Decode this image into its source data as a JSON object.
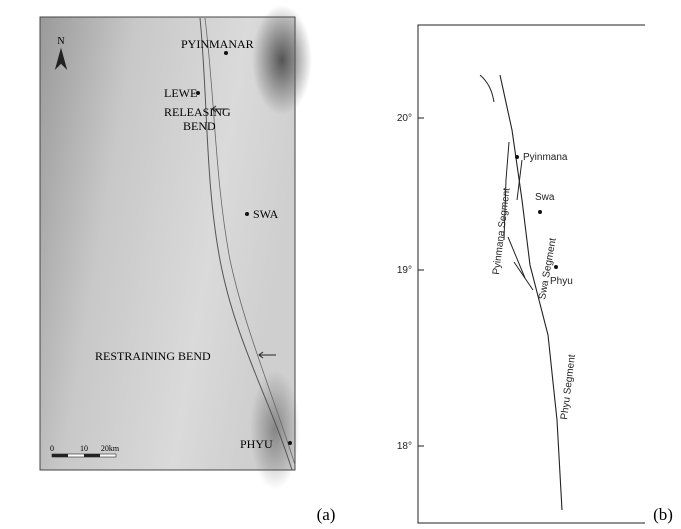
{
  "panel_a": {
    "north": "N",
    "places": [
      "PYINMANAR",
      "LEWE",
      "SWA",
      "PHYU"
    ],
    "releasing_bend": [
      "RELEASING",
      "BEND"
    ],
    "restraining_bend": "RESTRAINING BEND",
    "scale_bar": [
      "0",
      "10",
      "20km"
    ],
    "label": "(a)"
  },
  "panel_b": {
    "latitudes": [
      "20°",
      "19°",
      "18°"
    ],
    "places": [
      "Pyinmana",
      "Swa",
      "Phyu"
    ],
    "segments": [
      "Pyinmana Segment",
      "Swa Segment",
      "Phyu Segment"
    ],
    "label": "(b)"
  }
}
